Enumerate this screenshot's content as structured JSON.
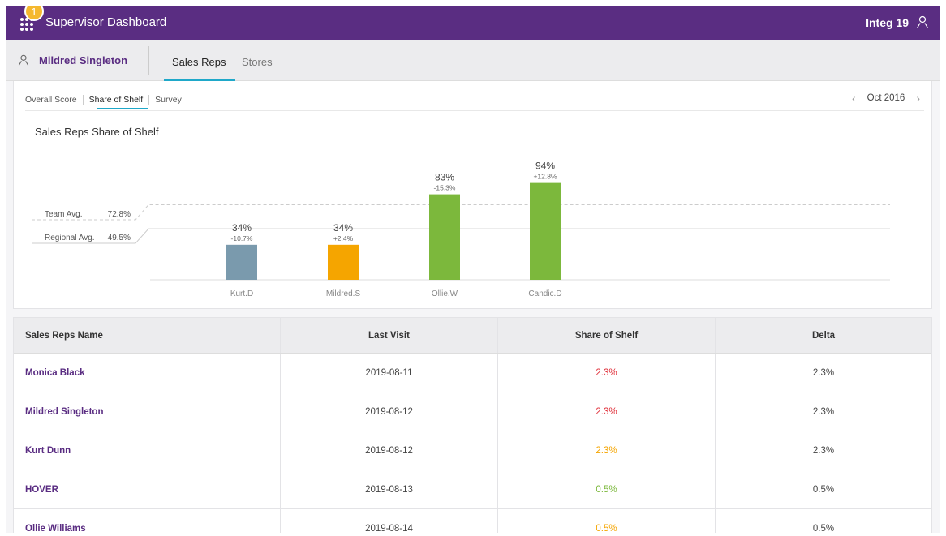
{
  "header": {
    "title": "Supervisor Dashboard",
    "badge": "1",
    "user": "Integ 19",
    "apps_icon": "apps-grid-icon",
    "user_icon": "user-icon"
  },
  "subheader": {
    "rep_name": "Mildred Singleton",
    "tabs": [
      {
        "label": "Sales Reps",
        "active": true
      },
      {
        "label": "Stores",
        "active": false
      }
    ]
  },
  "card": {
    "subtabs": [
      "Overall Score",
      "Share of Shelf",
      "Survey"
    ],
    "active_subtab": "Share of Shelf",
    "date": "Oct 2016"
  },
  "chart_data": {
    "type": "bar",
    "title": "Sales Reps Share of Shelf",
    "categories": [
      "Kurt.D",
      "Mildred.S",
      "Ollie.W",
      "Candic.D"
    ],
    "values": [
      34,
      34,
      83,
      94
    ],
    "value_labels": [
      "34%",
      "34%",
      "83%",
      "94%"
    ],
    "delta_labels": [
      "-10.7%",
      "+2.4%",
      "-15.3%",
      "+12.8%"
    ],
    "colors": [
      "#7a9aad",
      "#f5a500",
      "#7cb83c",
      "#7cb83c"
    ],
    "reference_lines": [
      {
        "label": "Team Avg.",
        "value_label": "72.8%",
        "value": 72.8,
        "style": "dashed"
      },
      {
        "label": "Regional Avg.",
        "value_label": "49.5%",
        "value": 49.5,
        "style": "solid"
      }
    ],
    "grid": false
  },
  "table": {
    "headers": [
      "Sales Reps Name",
      "Last Visit",
      "Share of Shelf",
      "Delta"
    ],
    "rows": [
      {
        "name": "Monica Black",
        "last_visit": "2019-08-11",
        "share": "2.3%",
        "share_color": "#e0303a",
        "delta": "2.3%"
      },
      {
        "name": "Mildred Singleton",
        "last_visit": "2019-08-12",
        "share": "2.3%",
        "share_color": "#e0303a",
        "delta": "2.3%"
      },
      {
        "name": "Kurt Dunn",
        "last_visit": "2019-08-12",
        "share": "2.3%",
        "share_color": "#f5a500",
        "delta": "2.3%"
      },
      {
        "name": "HOVER",
        "last_visit": "2019-08-13",
        "share": "0.5%",
        "share_color": "#7cb83c",
        "delta": "0.5%"
      },
      {
        "name": "Ollie Williams",
        "last_visit": "2019-08-14",
        "share": "0.5%",
        "share_color": "#f5a500",
        "delta": "0.5%"
      }
    ]
  }
}
